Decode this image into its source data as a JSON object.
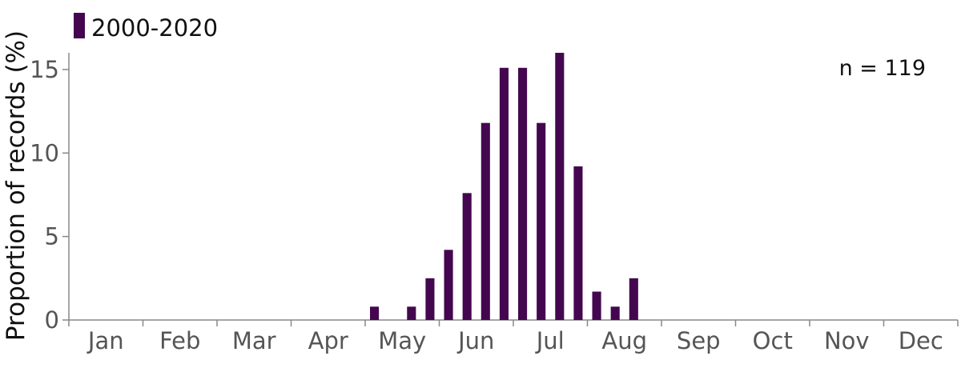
{
  "chart_data": {
    "type": "bar",
    "title": "",
    "xlabel": "",
    "ylabel": "Proportion of records (%)",
    "ylim": [
      0,
      16
    ],
    "yticks": [
      0,
      5,
      10,
      15
    ],
    "months": [
      "Jan",
      "Feb",
      "Mar",
      "Apr",
      "May",
      "Jun",
      "Jul",
      "Aug",
      "Sep",
      "Oct",
      "Nov",
      "Dec"
    ],
    "periods_per_month": 4,
    "legend": {
      "position": "top-left"
    },
    "annotation": "n = 119",
    "grid": false,
    "series": [
      {
        "name": "2000-2020",
        "color": "#44074f",
        "values": [
          0,
          0,
          0,
          0,
          0,
          0,
          0,
          0,
          0,
          0,
          0,
          0,
          0,
          0,
          0,
          0,
          0.8,
          0,
          0.8,
          2.5,
          4.2,
          7.6,
          11.8,
          15.1,
          15.1,
          11.8,
          16.0,
          9.2,
          1.7,
          0.8,
          2.5,
          0,
          0,
          0,
          0,
          0,
          0,
          0,
          0,
          0,
          0,
          0,
          0,
          0,
          0,
          0,
          0,
          0
        ]
      }
    ]
  }
}
